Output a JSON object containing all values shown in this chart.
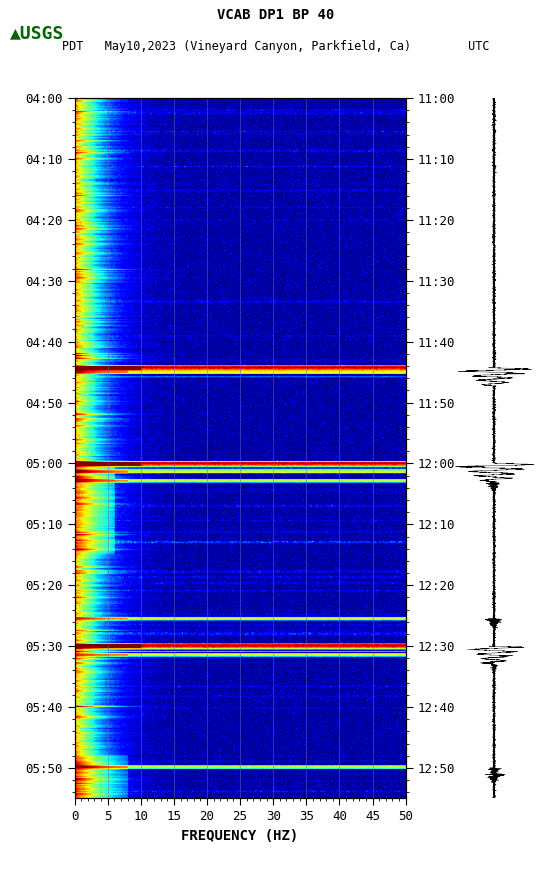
{
  "title_line1": "VCAB DP1 BP 40",
  "title_line2": "PDT   May10,2023 (Vineyard Canyon, Parkfield, Ca)        UTC",
  "xlabel": "FREQUENCY (HZ)",
  "freq_min": 0,
  "freq_max": 50,
  "total_minutes": 115,
  "ytick_pdt": [
    "04:00",
    "04:10",
    "04:20",
    "04:30",
    "04:40",
    "04:50",
    "05:00",
    "05:10",
    "05:20",
    "05:30",
    "05:40",
    "05:50"
  ],
  "ytick_utc": [
    "11:00",
    "11:10",
    "11:20",
    "11:30",
    "11:40",
    "11:50",
    "12:00",
    "12:10",
    "12:20",
    "12:30",
    "12:40",
    "12:50"
  ],
  "xticks": [
    0,
    5,
    10,
    15,
    20,
    25,
    30,
    35,
    40,
    45,
    50
  ],
  "vertical_lines_freq": [
    5,
    10,
    15,
    20,
    25,
    30,
    35,
    40,
    45
  ],
  "background_color": "#ffffff",
  "colormap": "jet",
  "fig_width": 5.52,
  "fig_height": 8.92,
  "dpi": 100,
  "usgs_logo_color": "#006400",
  "event_minutes": [
    44.3,
    45.2,
    60.0,
    61.5,
    63.0,
    85.5,
    90.0,
    91.5,
    110.0
  ],
  "main_event_minutes": [
    44.3,
    60.0,
    90.0
  ],
  "aftershock_minutes": [
    45.2,
    61.5,
    63.0,
    85.5,
    91.5,
    110.0
  ]
}
